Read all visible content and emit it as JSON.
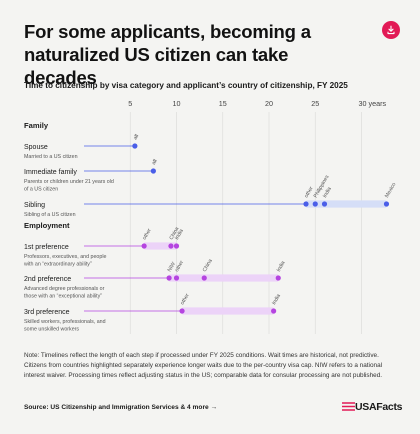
{
  "header": {
    "title": "For some applicants, becoming a naturalized US citizen can take decades",
    "subtitle": "Time to citizenship by visa category and applicant’s country of citizenship, FY 2025",
    "download_icon": "download-icon"
  },
  "footer": {
    "note": "Note: Timelines reflect the length of each step if processed under FY 2025 conditions. Wait times are historical, not predictive. Citizens from countries highlighted separately experience longer waits due to the per-country visa cap. NIW refers to a national interest waiver. Processing times reflect adjusting status in the US; comparable data for consular processing are not published.",
    "source": "Source: US Citizenship and Immigration Services & 4 more →",
    "brand": "USAFacts",
    "brand_icon": "usafacts-flag-icon"
  },
  "colors": {
    "family": "#4a5ee8",
    "family_band": "#d5def7",
    "employment": "#b544e0",
    "employment_band": "#ecd3f8",
    "accent": "#e21a56"
  },
  "chart_data": {
    "type": "dot-range",
    "xaxis": {
      "ticks": [
        5,
        10,
        15,
        20,
        25,
        30
      ],
      "tick_labels": [
        "5",
        "10",
        "15",
        "20",
        "25",
        "30 years"
      ],
      "xlim": [
        0,
        32
      ]
    },
    "groups": [
      {
        "name": "Family",
        "rows": [
          {
            "label": "Spouse",
            "desc": [
              "Married to a US citizen"
            ],
            "points": [
              {
                "name": "all",
                "x": 5.5
              }
            ]
          },
          {
            "label": "Immediate family",
            "desc": [
              "Parents or children under 21 years old",
              "of a US citizen"
            ],
            "points": [
              {
                "name": "all",
                "x": 7.5
              }
            ]
          },
          {
            "label": "Sibling",
            "desc": [
              "Sibling of a US citizen"
            ],
            "points": [
              {
                "name": "other",
                "x": 24
              },
              {
                "name": "Philippines",
                "x": 25
              },
              {
                "name": "India",
                "x": 26
              },
              {
                "name": "Mexico",
                "x": 32.7
              }
            ]
          }
        ]
      },
      {
        "name": "Employment",
        "rows": [
          {
            "label": "1st preference",
            "desc": [
              "Professors, executives, and people",
              "with an “extraordinary ability”"
            ],
            "points": [
              {
                "name": "other",
                "x": 6.5
              },
              {
                "name": "China",
                "x": 9.4
              },
              {
                "name": "India",
                "x": 10
              }
            ]
          },
          {
            "label": "2nd preference",
            "desc": [
              "Advanced degree professionals or",
              "those with an “exceptional ability”"
            ],
            "points": [
              {
                "name": "NIW",
                "x": 9.2
              },
              {
                "name": "other",
                "x": 10
              },
              {
                "name": "China",
                "x": 13
              },
              {
                "name": "India",
                "x": 21
              }
            ]
          },
          {
            "label": "3rd preference",
            "desc": [
              "Skilled workers, professionals, and",
              "some unskilled workers"
            ],
            "points": [
              {
                "name": "other",
                "x": 10.6
              },
              {
                "name": "India",
                "x": 20.5
              }
            ]
          }
        ]
      }
    ]
  }
}
